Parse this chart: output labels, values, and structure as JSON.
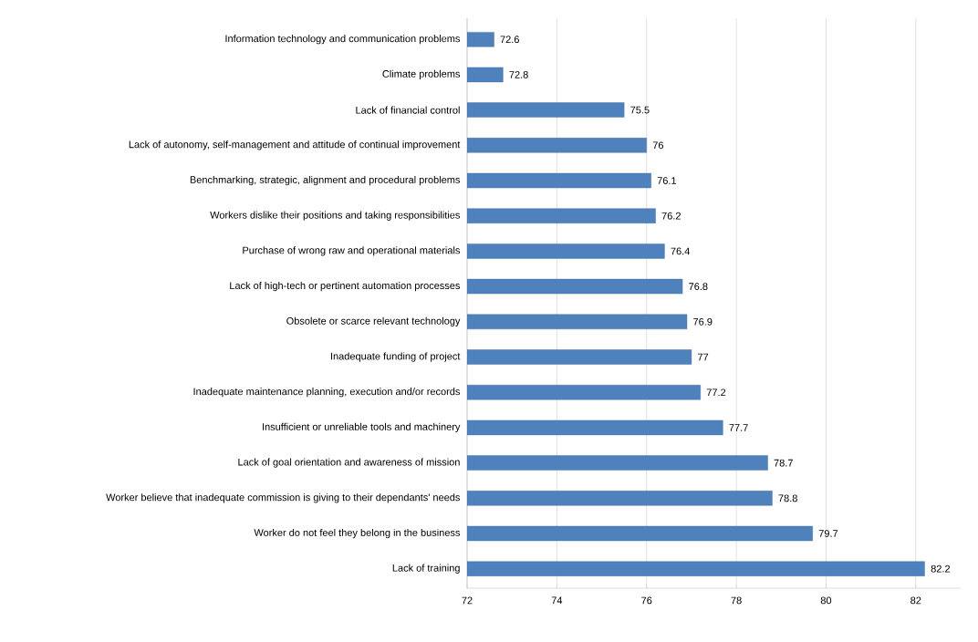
{
  "chart_data": {
    "type": "bar",
    "orientation": "horizontal",
    "categories": [
      "Information technology and communication problems",
      "Climate problems",
      "Lack of financial control",
      "Lack of autonomy, self-management and attitude of continual improvement",
      "Benchmarking, strategic, alignment and procedural problems",
      "Workers dislike their positions and taking responsibilities",
      "Purchase of wrong raw and operational materials",
      "Lack of high-tech or pertinent automation processes",
      "Obsolete or scarce relevant technology",
      "Inadequate funding of project",
      "Inadequate maintenance planning, execution and/or records",
      "Insufficient or unreliable tools and machinery",
      "Lack of goal orientation and awareness of mission",
      "Worker believe that inadequate commission is giving to their dependants' needs",
      "Worker do not feel they belong in the business",
      "Lack of training"
    ],
    "values": [
      72.6,
      72.8,
      75.5,
      76,
      76.1,
      76.2,
      76.4,
      76.8,
      76.9,
      77,
      77.2,
      77.7,
      78.7,
      78.8,
      79.7,
      82.2
    ],
    "color": "#4f81bd",
    "xlim": [
      72,
      83
    ],
    "xticks": [
      72,
      74,
      76,
      78,
      80,
      82
    ],
    "grid": "x",
    "data_labels": true
  }
}
